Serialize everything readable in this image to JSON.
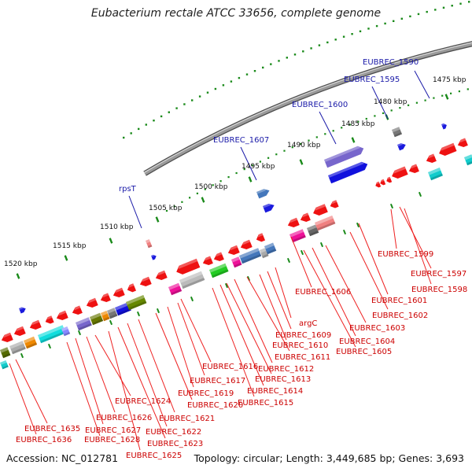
{
  "title": "Eubacterium rectale ATCC 33656, complete genome",
  "footer": {
    "accession": "Accession: NC_012781",
    "stats": "Topology: circular; Length: 3,449,685 bp; Genes: 3,693"
  },
  "colors": {
    "label_blue": "#1a1aa8",
    "label_red": "#cc0000",
    "tick_green": "#1a8a1a",
    "backbone": "#808080"
  },
  "ruler": [
    {
      "label": "1475 kbp"
    },
    {
      "label": "1480 kbp"
    },
    {
      "label": "1485 kbp"
    },
    {
      "label": "1490 kbp"
    },
    {
      "label": "1495 kbp"
    },
    {
      "label": "1500 kbp"
    },
    {
      "label": "1505 kbp"
    },
    {
      "label": "1510 kbp"
    },
    {
      "label": "1515 kbp"
    },
    {
      "label": "1520 kbp"
    }
  ],
  "top_labels": [
    {
      "text": "EUBREC_1590"
    },
    {
      "text": "EUBREC_1595"
    },
    {
      "text": "EUBREC_1600"
    },
    {
      "text": "EUBREC_1607"
    },
    {
      "text": "rpsT"
    }
  ],
  "bottom_labels": [
    {
      "text": "EUBREC_1599"
    },
    {
      "text": "EUBREC_1597"
    },
    {
      "text": "EUBREC_1598"
    },
    {
      "text": "EUBREC_1601"
    },
    {
      "text": "EUBREC_1602"
    },
    {
      "text": "EUBREC_1606"
    },
    {
      "text": "EUBREC_1603"
    },
    {
      "text": "EUBREC_1604"
    },
    {
      "text": "EUBREC_1605"
    },
    {
      "text": "argC"
    },
    {
      "text": "EUBREC_1609"
    },
    {
      "text": "EUBREC_1610"
    },
    {
      "text": "EUBREC_1611"
    },
    {
      "text": "EUBREC_1612"
    },
    {
      "text": "EUBREC_1613"
    },
    {
      "text": "EUBREC_1614"
    },
    {
      "text": "EUBREC_1615"
    },
    {
      "text": "EUBREC_1616"
    },
    {
      "text": "EUBREC_1617"
    },
    {
      "text": "EUBREC_1619"
    },
    {
      "text": "EUBREC_1620"
    },
    {
      "text": "EUBREC_1621"
    },
    {
      "text": "EUBREC_1622"
    },
    {
      "text": "EUBREC_1623"
    },
    {
      "text": "EUBREC_1624"
    },
    {
      "text": "EUBREC_1625"
    },
    {
      "text": "EUBREC_1626"
    },
    {
      "text": "EUBREC_1627"
    },
    {
      "text": "EUBREC_1628"
    },
    {
      "text": "EUBREC_1635"
    },
    {
      "text": "EUBREC_1636"
    }
  ]
}
